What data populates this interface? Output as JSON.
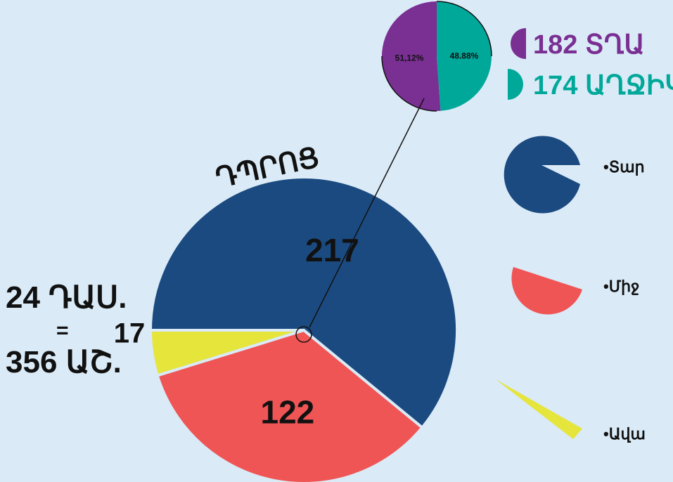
{
  "chart_data": [
    {
      "type": "pie",
      "title": "ԴՊՐՈՑ",
      "series": [
        {
          "name": "•Տար",
          "color": "#1b4a80",
          "values": [
            217
          ]
        },
        {
          "name": "•Միջ",
          "color": "#f05555",
          "values": [
            122
          ]
        },
        {
          "name": "•Ավա",
          "color": "#e5e53c",
          "values": [
            17
          ]
        }
      ],
      "annotations": [
        "24 ԴԱՍ.",
        "=",
        "356 ԱՇ."
      ]
    },
    {
      "type": "pie",
      "categories": [
        "ՏՂԱ",
        "ԱՂՋԻԿ"
      ],
      "counts": [
        182,
        174
      ],
      "values": [
        51.12,
        48.88
      ],
      "value_labels": [
        "51,12%",
        "48.88%"
      ],
      "colors": [
        "#7a2f93",
        "#00a89a"
      ]
    }
  ]
}
